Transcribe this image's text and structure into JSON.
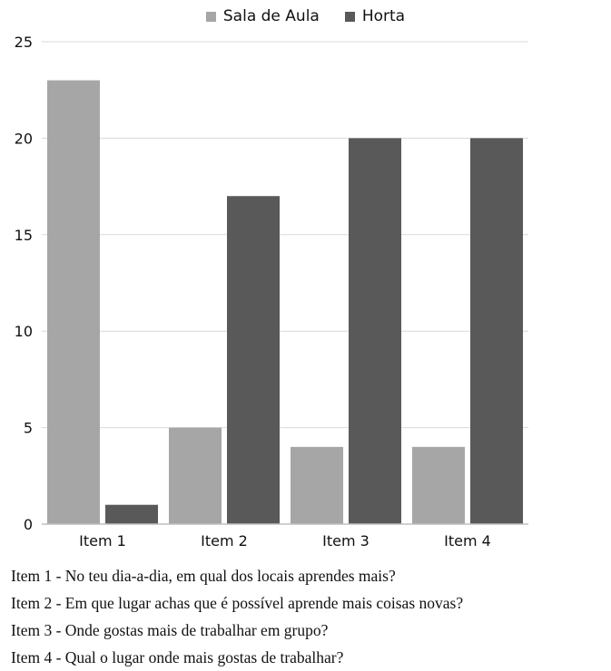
{
  "chart_data": {
    "type": "bar",
    "categories": [
      "Item 1",
      "Item 2",
      "Item 3",
      "Item 4"
    ],
    "series": [
      {
        "name": "Sala de Aula",
        "values": [
          23,
          5,
          4,
          4
        ],
        "color": "#a6a6a6"
      },
      {
        "name": "Horta",
        "values": [
          1,
          17,
          20,
          20
        ],
        "color": "#595959"
      }
    ],
    "ylim": [
      0,
      25
    ],
    "yticks": [
      0,
      5,
      10,
      15,
      20,
      25
    ],
    "grid": true,
    "legend": "top-center",
    "title": "",
    "xlabel": "",
    "ylabel": ""
  },
  "captions": [
    "Item 1 - No teu dia-a-dia, em qual dos locais aprendes mais?",
    "Item 2 - Em que lugar achas que é possível aprende mais coisas novas?",
    "Item 3 - Onde gostas mais de trabalhar em grupo?",
    "Item 4 - Qual o lugar onde mais gostas de trabalhar?"
  ]
}
